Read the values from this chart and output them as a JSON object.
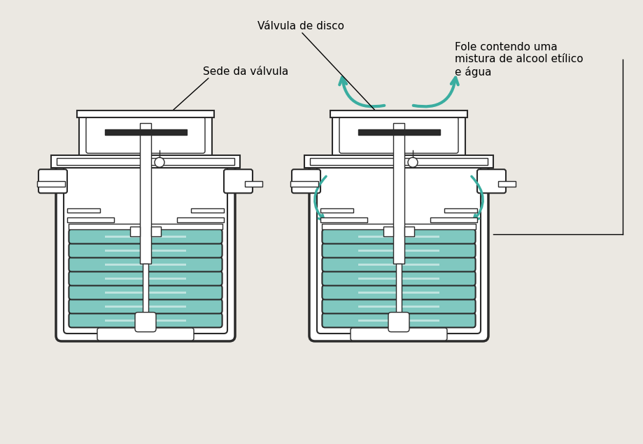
{
  "bg_color": "#ebe8e2",
  "line_color": "#2a2a2a",
  "teal_color": "#3aada0",
  "teal_fill": "#80c8c0",
  "teal_fill2": "#5ab8b0",
  "white": "#ffffff",
  "label1": "Válvula de disco",
  "label2": "Sede da válvula",
  "label3": "Fole contendo uma\nmistura de alcool etílico\ne água",
  "figsize": [
    9.19,
    6.35
  ],
  "dpi": 100
}
